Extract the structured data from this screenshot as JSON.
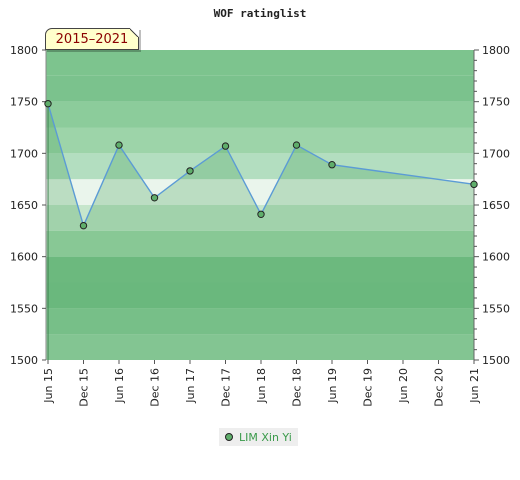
{
  "chart_data": {
    "type": "line",
    "title": "WOF ratinglist",
    "period_badge": "2015–2021",
    "ylim": [
      1500,
      1800
    ],
    "y_ticks": [
      1500,
      1550,
      1600,
      1650,
      1700,
      1750,
      1800
    ],
    "y_tick_labels": [
      "1500",
      "1550",
      "1600",
      "1650",
      "1700",
      "1750",
      "1800"
    ],
    "x_tick_labels": [
      "Jun 15",
      "Dec 15",
      "Jun 16",
      "Dec 16",
      "Jun 17",
      "Dec 17",
      "Jun 18",
      "Dec 18",
      "Jun 19",
      "Dec 19",
      "Jun 20",
      "Dec 20",
      "Jun 21"
    ],
    "series": [
      {
        "name": "LIM Xin Yi",
        "color": "#5b9bd5",
        "marker_color": "#5fae6b",
        "points": [
          {
            "x": "Jun 15",
            "y": 1748
          },
          {
            "x": "Dec 15",
            "y": 1630
          },
          {
            "x": "Jun 16",
            "y": 1708
          },
          {
            "x": "Dec 16",
            "y": 1657
          },
          {
            "x": "Jun 17",
            "y": 1683
          },
          {
            "x": "Dec 17",
            "y": 1707
          },
          {
            "x": "Jun 18",
            "y": 1641
          },
          {
            "x": "Dec 18",
            "y": 1708
          },
          {
            "x": "Jun 19",
            "y": 1689
          },
          {
            "x": "Jun 21",
            "y": 1670
          }
        ]
      }
    ],
    "grid": false,
    "legend": "bottom",
    "band_colors": [
      "#9dd4a9",
      "#8ccc9b",
      "#7bc28d",
      "#7dc48e",
      "#a4d8ae",
      "#c6e6cc",
      "#eaf5ec",
      "#b3dec0"
    ]
  }
}
